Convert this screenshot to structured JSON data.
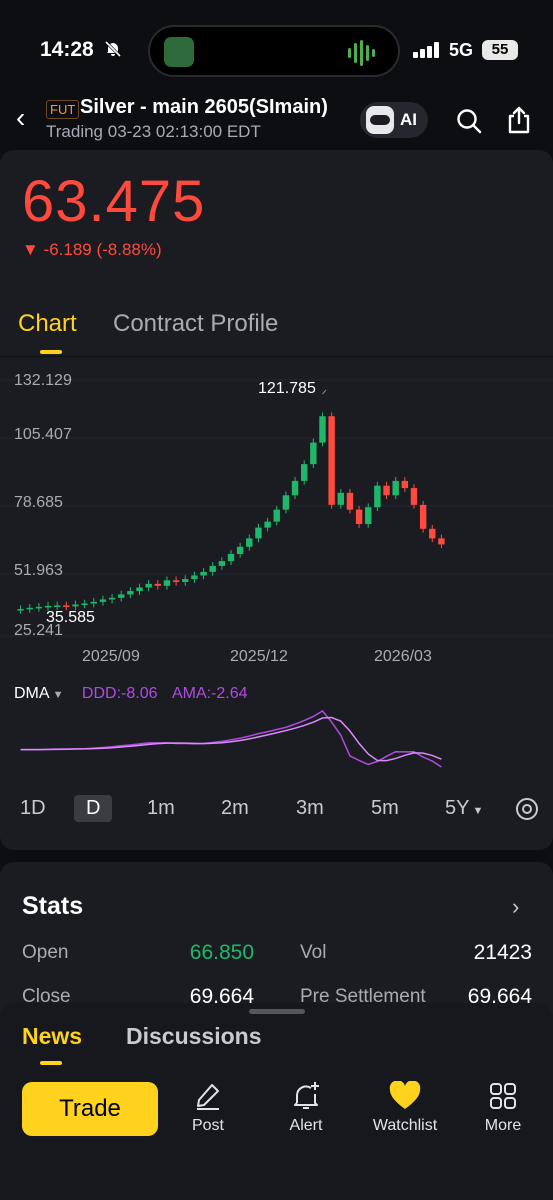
{
  "status_bar": {
    "time": "14:28",
    "network": "5G",
    "battery": "55"
  },
  "header": {
    "type_badge": "FUT",
    "title": "Silver - main 2605(SImain)",
    "subtitle": "Trading 03-23 02:13:00 EDT",
    "ai_label": "AI"
  },
  "quote": {
    "price": "63.475",
    "change": "▼ -6.189 (-8.88%)",
    "color_down": "#ff4a3d"
  },
  "tabs": {
    "chart": "Chart",
    "contract_profile": "Contract Profile"
  },
  "chart_data": {
    "type": "candlestick",
    "y_tick_labels": [
      "132.129",
      "105.407",
      "78.685",
      "51.963",
      "25.241"
    ],
    "ylim": [
      25.241,
      132.129
    ],
    "x_tick_labels": [
      "2025/09",
      "2025/12",
      "2026/03"
    ],
    "max_label": "121.785",
    "min_label": "35.585",
    "up_color": "#1fb86a",
    "down_color": "#ff4a3d",
    "closes": [
      36.5,
      37.0,
      37.4,
      37.8,
      38.0,
      37.6,
      38.4,
      38.8,
      39.5,
      40.5,
      41.2,
      42.6,
      44.0,
      45.5,
      47.0,
      46.2,
      48.5,
      47.8,
      49.0,
      50.5,
      52.0,
      54.5,
      56.5,
      59.5,
      62.5,
      66.0,
      70.5,
      73.0,
      78.0,
      84.0,
      90.0,
      97.0,
      106.0,
      117.0,
      80.0,
      85.0,
      78.0,
      72.0,
      79.0,
      88.0,
      84.0,
      90.0,
      87.0,
      80.0,
      70.0,
      66.0,
      63.475
    ]
  },
  "indicator": {
    "name": "DMA",
    "ddd": "DDD:-8.06",
    "ama": "AMA:-2.64",
    "color": "#b04be0"
  },
  "periods": [
    "1D",
    "D",
    "1m",
    "2m",
    "3m",
    "5m",
    "5Y"
  ],
  "active_period": "D",
  "stats": {
    "title": "Stats",
    "rows": [
      {
        "label_left": "Open",
        "value_left": "66.850",
        "label_right": "Vol",
        "value_right": "21423"
      },
      {
        "label_left": "Close",
        "value_left": "69.664",
        "label_right": "Pre Settlement",
        "value_right": "69.664"
      }
    ],
    "open_color": "#1fb86a"
  },
  "bottom": {
    "news": "News",
    "discussions": "Discussions",
    "trade": "Trade",
    "actions": [
      "Post",
      "Alert",
      "Watchlist",
      "More"
    ]
  }
}
